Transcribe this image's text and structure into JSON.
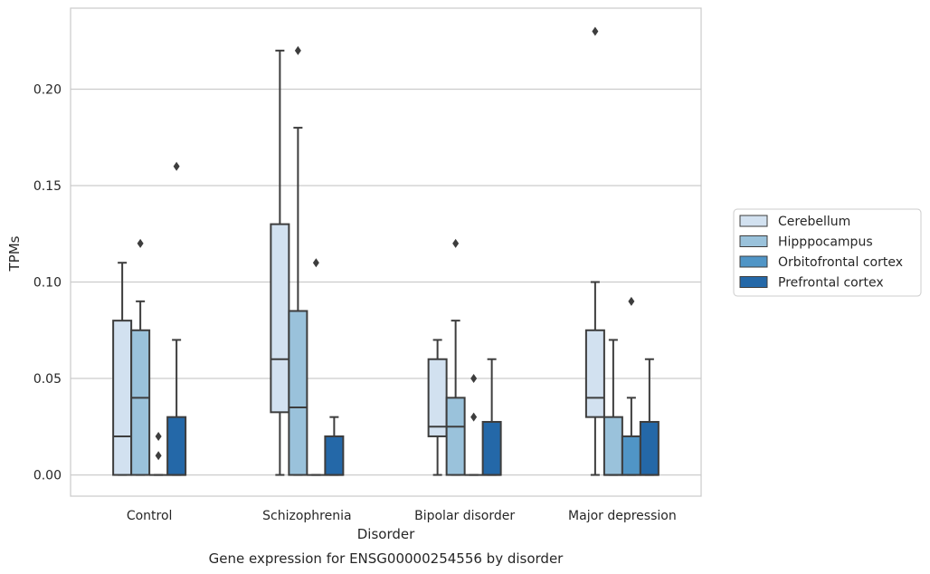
{
  "chart_data": {
    "type": "box",
    "xlabel": "Disorder",
    "ylabel": "TPMs",
    "caption": "Gene expression for ENSG00000254556 by disorder",
    "categories": [
      "Control",
      "Schizophrenia",
      "Bipolar disorder",
      "Major depression"
    ],
    "ylim": [
      -0.011,
      0.242
    ],
    "yticks": [
      0.0,
      0.05,
      0.1,
      0.15,
      0.2
    ],
    "ytick_labels": [
      "0.00",
      "0.05",
      "0.10",
      "0.15",
      "0.20"
    ],
    "grid": "horizontal",
    "legend_position": "right",
    "series": [
      {
        "name": "Cerebellum",
        "color": "#d2e1f0",
        "boxes": [
          {
            "q1": 0.0,
            "median": 0.02,
            "q3": 0.08,
            "whisker_low": 0.0,
            "whisker_high": 0.11,
            "outliers": []
          },
          {
            "q1": 0.0325,
            "median": 0.06,
            "q3": 0.13,
            "whisker_low": 0.0,
            "whisker_high": 0.22,
            "outliers": []
          },
          {
            "q1": 0.02,
            "median": 0.025,
            "q3": 0.06,
            "whisker_low": 0.0,
            "whisker_high": 0.07,
            "outliers": []
          },
          {
            "q1": 0.03,
            "median": 0.04,
            "q3": 0.075,
            "whisker_low": 0.0,
            "whisker_high": 0.1,
            "outliers": [
              0.23
            ]
          }
        ]
      },
      {
        "name": "Hipppocampus",
        "color": "#9ac2db",
        "boxes": [
          {
            "q1": 0.0,
            "median": 0.04,
            "q3": 0.075,
            "whisker_low": 0.0,
            "whisker_high": 0.09,
            "outliers": [
              0.12
            ]
          },
          {
            "q1": 0.0,
            "median": 0.035,
            "q3": 0.085,
            "whisker_low": 0.0,
            "whisker_high": 0.18,
            "outliers": [
              0.22
            ]
          },
          {
            "q1": 0.0,
            "median": 0.025,
            "q3": 0.04,
            "whisker_low": 0.0,
            "whisker_high": 0.08,
            "outliers": [
              0.12
            ]
          },
          {
            "q1": 0.0,
            "median": 0.0,
            "q3": 0.03,
            "whisker_low": 0.0,
            "whisker_high": 0.07,
            "outliers": []
          }
        ]
      },
      {
        "name": "Orbitofrontal cortex",
        "color": "#5095c6",
        "boxes": [
          {
            "q1": 0.0,
            "median": 0.0,
            "q3": 0.0,
            "whisker_low": 0.0,
            "whisker_high": 0.0,
            "outliers": [
              0.01,
              0.02
            ]
          },
          {
            "q1": 0.0,
            "median": 0.0,
            "q3": 0.0,
            "whisker_low": 0.0,
            "whisker_high": 0.0,
            "outliers": [
              0.11
            ]
          },
          {
            "q1": 0.0,
            "median": 0.0,
            "q3": 0.0,
            "whisker_low": 0.0,
            "whisker_high": 0.0,
            "outliers": [
              0.03,
              0.05
            ]
          },
          {
            "q1": 0.0,
            "median": 0.0,
            "q3": 0.02,
            "whisker_low": 0.0,
            "whisker_high": 0.04,
            "outliers": [
              0.09
            ]
          }
        ]
      },
      {
        "name": "Prefrontal cortex",
        "color": "#2468a8",
        "boxes": [
          {
            "q1": 0.0,
            "median": 0.0,
            "q3": 0.03,
            "whisker_low": 0.0,
            "whisker_high": 0.07,
            "outliers": [
              0.16
            ]
          },
          {
            "q1": 0.0,
            "median": 0.0,
            "q3": 0.02,
            "whisker_low": 0.0,
            "whisker_high": 0.03,
            "outliers": []
          },
          {
            "q1": 0.0,
            "median": 0.0,
            "q3": 0.0275,
            "whisker_low": 0.0,
            "whisker_high": 0.06,
            "outliers": []
          },
          {
            "q1": 0.0,
            "median": 0.0,
            "q3": 0.0275,
            "whisker_low": 0.0,
            "whisker_high": 0.06,
            "outliers": []
          }
        ]
      }
    ]
  }
}
